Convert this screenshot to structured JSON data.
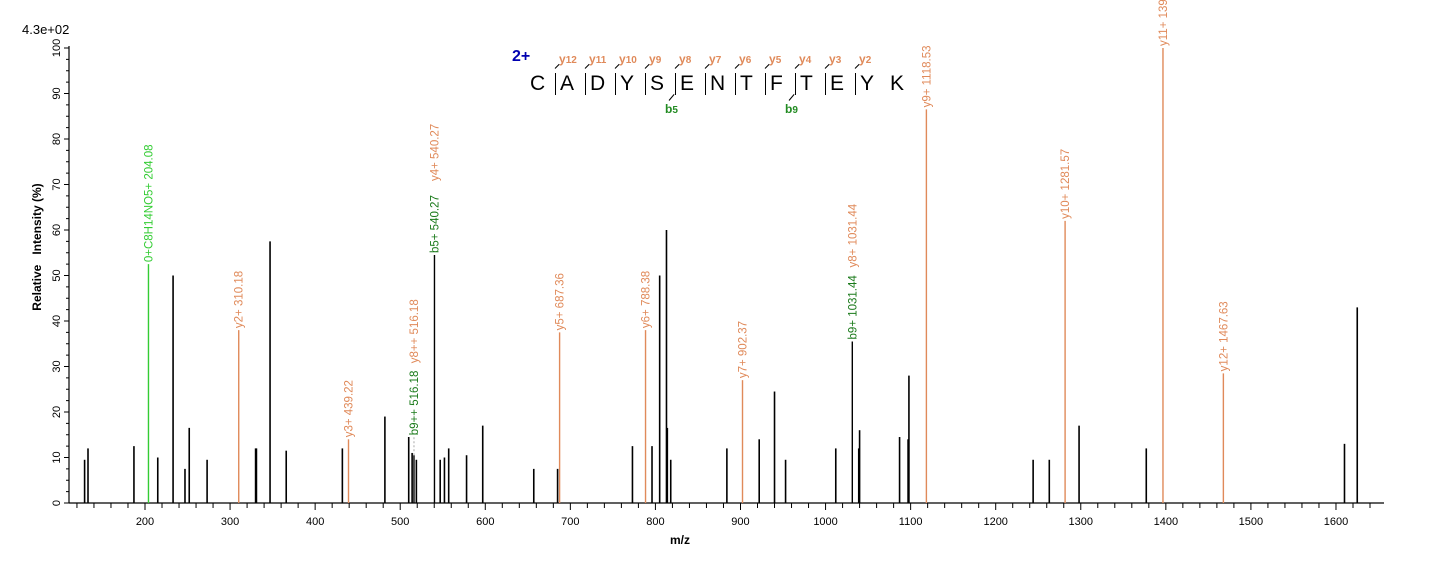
{
  "chart_data": {
    "type": "bar",
    "title": "",
    "scale_label": "4.3e+02",
    "xlabel": "m/z",
    "ylabel": "Relative   Intensity (%)",
    "xlim": [
      115,
      1665
    ],
    "ylim": [
      0,
      100
    ],
    "x_ticks": [
      200,
      300,
      400,
      500,
      600,
      700,
      800,
      900,
      1000,
      1100,
      1200,
      1300,
      1400,
      1500,
      1600
    ],
    "y_ticks": [
      0,
      10,
      20,
      30,
      40,
      50,
      60,
      70,
      80,
      90,
      100
    ],
    "grid": false,
    "peptide": {
      "charge": "2+",
      "sequence": [
        "C",
        "A",
        "D",
        "Y",
        "S",
        "E",
        "N",
        "T",
        "F",
        "T",
        "E",
        "Y",
        "K"
      ],
      "y_ions": [
        "y12",
        "y11",
        "y10",
        "y9",
        "y8",
        "y7",
        "y6",
        "y5",
        "y4",
        "y3",
        "y2"
      ],
      "b_ions": [
        {
          "label": "b5",
          "after_index": 4
        },
        {
          "label": "b9",
          "after_index": 8
        }
      ]
    },
    "colors": {
      "unannotated": "#000000",
      "y_ion": "#e08a5a",
      "b_ion": "#228b22",
      "neutral": "#33cc33",
      "charge": "#0000b0"
    },
    "annotated_peaks": [
      {
        "mz": 204.08,
        "intensity": 52.5,
        "label": "0+C8H14NO5+ 204.08",
        "type": "neutral"
      },
      {
        "mz": 310.18,
        "intensity": 38.0,
        "label": "y2+ 310.18",
        "type": "y"
      },
      {
        "mz": 439.22,
        "intensity": 14.0,
        "label": "y3+ 439.22",
        "type": "y"
      },
      {
        "mz": 516.18,
        "intensity": 10.5,
        "label": "b9++ 516.18",
        "type": "b"
      },
      {
        "mz": 516.18,
        "intensity": 10.5,
        "label": "y8++ 516.18",
        "type": "y"
      },
      {
        "mz": 540.27,
        "intensity": 54.5,
        "label": "b5+ 540.27",
        "type": "b"
      },
      {
        "mz": 540.27,
        "intensity": 54.5,
        "label": "y4+ 540.27",
        "type": "y"
      },
      {
        "mz": 687.36,
        "intensity": 37.5,
        "label": "y5+ 687.36",
        "type": "y"
      },
      {
        "mz": 788.38,
        "intensity": 38.0,
        "label": "y6+ 788.38",
        "type": "y"
      },
      {
        "mz": 902.37,
        "intensity": 27.0,
        "label": "y7+ 902.37",
        "type": "y"
      },
      {
        "mz": 1031.44,
        "intensity": 35.5,
        "label": "b9+ 1031.44",
        "type": "b"
      },
      {
        "mz": 1031.44,
        "intensity": 35.5,
        "label": "y8+ 1031.44",
        "type": "y"
      },
      {
        "mz": 1118.53,
        "intensity": 86.5,
        "label": "y9+ 1118.53",
        "type": "y"
      },
      {
        "mz": 1281.57,
        "intensity": 62.0,
        "label": "y10+ 1281.57",
        "type": "y"
      },
      {
        "mz": 1396.63,
        "intensity": 100.0,
        "label": "y11+ 1396.63",
        "type": "y"
      },
      {
        "mz": 1467.63,
        "intensity": 28.5,
        "label": "y12+ 1467.63",
        "type": "y"
      }
    ],
    "unannotated_peaks": [
      {
        "mz": 129,
        "intensity": 9.5
      },
      {
        "mz": 133,
        "intensity": 12
      },
      {
        "mz": 187,
        "intensity": 12.5
      },
      {
        "mz": 215,
        "intensity": 10
      },
      {
        "mz": 233,
        "intensity": 50
      },
      {
        "mz": 247,
        "intensity": 7.5
      },
      {
        "mz": 252,
        "intensity": 16.5
      },
      {
        "mz": 273,
        "intensity": 9.5
      },
      {
        "mz": 330,
        "intensity": 12
      },
      {
        "mz": 331,
        "intensity": 12
      },
      {
        "mz": 347,
        "intensity": 57.5
      },
      {
        "mz": 366,
        "intensity": 11.5
      },
      {
        "mz": 432,
        "intensity": 12
      },
      {
        "mz": 482,
        "intensity": 19
      },
      {
        "mz": 510,
        "intensity": 14.5
      },
      {
        "mz": 514,
        "intensity": 11
      },
      {
        "mz": 519,
        "intensity": 9.5
      },
      {
        "mz": 547,
        "intensity": 9.5
      },
      {
        "mz": 552,
        "intensity": 10
      },
      {
        "mz": 557,
        "intensity": 12
      },
      {
        "mz": 578,
        "intensity": 10.5
      },
      {
        "mz": 597,
        "intensity": 17
      },
      {
        "mz": 657,
        "intensity": 7.5
      },
      {
        "mz": 685,
        "intensity": 7.5
      },
      {
        "mz": 773,
        "intensity": 12.5
      },
      {
        "mz": 796,
        "intensity": 12.5
      },
      {
        "mz": 805,
        "intensity": 50
      },
      {
        "mz": 813,
        "intensity": 60
      },
      {
        "mz": 814,
        "intensity": 16.5
      },
      {
        "mz": 818,
        "intensity": 9.5
      },
      {
        "mz": 884,
        "intensity": 12
      },
      {
        "mz": 922,
        "intensity": 14
      },
      {
        "mz": 940,
        "intensity": 24.5
      },
      {
        "mz": 953,
        "intensity": 9.5
      },
      {
        "mz": 1012,
        "intensity": 12
      },
      {
        "mz": 1039,
        "intensity": 12
      },
      {
        "mz": 1040,
        "intensity": 16
      },
      {
        "mz": 1087,
        "intensity": 14.5
      },
      {
        "mz": 1097,
        "intensity": 14
      },
      {
        "mz": 1098,
        "intensity": 28
      },
      {
        "mz": 1244,
        "intensity": 9.5
      },
      {
        "mz": 1263,
        "intensity": 9.5
      },
      {
        "mz": 1298,
        "intensity": 17
      },
      {
        "mz": 1377,
        "intensity": 12
      },
      {
        "mz": 1610,
        "intensity": 13
      },
      {
        "mz": 1625,
        "intensity": 43
      }
    ]
  }
}
